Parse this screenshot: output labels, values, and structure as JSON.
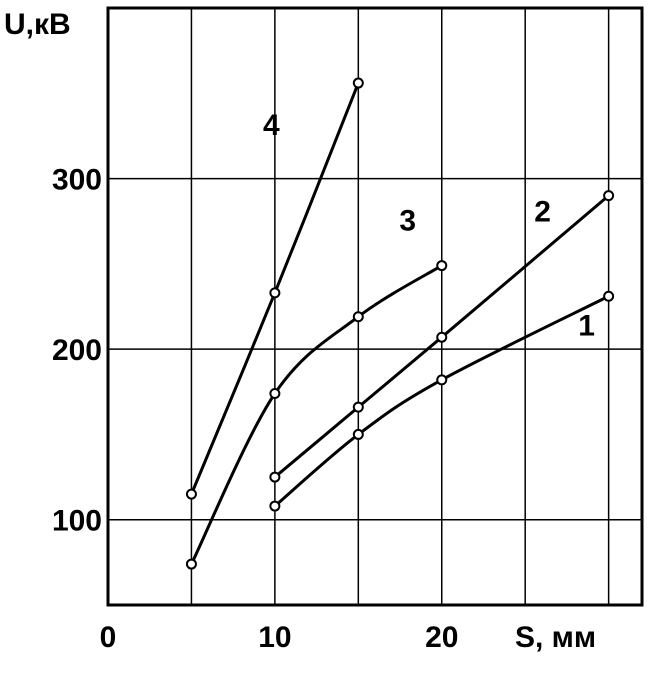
{
  "chart_data": {
    "type": "line",
    "x_label": "S, мм",
    "y_label": "U,кВ",
    "xlim": [
      0,
      32
    ],
    "ylim": [
      50,
      400
    ],
    "xticks": [
      0,
      10,
      20
    ],
    "yticks": [
      100,
      200,
      300
    ],
    "x_grid_lines": [
      5,
      10,
      15,
      20,
      25,
      30
    ],
    "grid": true,
    "color": "#000000",
    "series": [
      {
        "name": "1",
        "x": [
          10,
          15,
          20,
          30
        ],
        "values": [
          108,
          150,
          182,
          231
        ]
      },
      {
        "name": "2",
        "x": [
          10,
          15,
          20,
          30
        ],
        "values": [
          125,
          166,
          207,
          290
        ]
      },
      {
        "name": "3",
        "x": [
          5,
          10,
          15,
          20
        ],
        "values": [
          74,
          174,
          219,
          249
        ]
      },
      {
        "name": "4",
        "x": [
          5,
          10,
          15
        ],
        "values": [
          115,
          233,
          356
        ]
      }
    ]
  }
}
